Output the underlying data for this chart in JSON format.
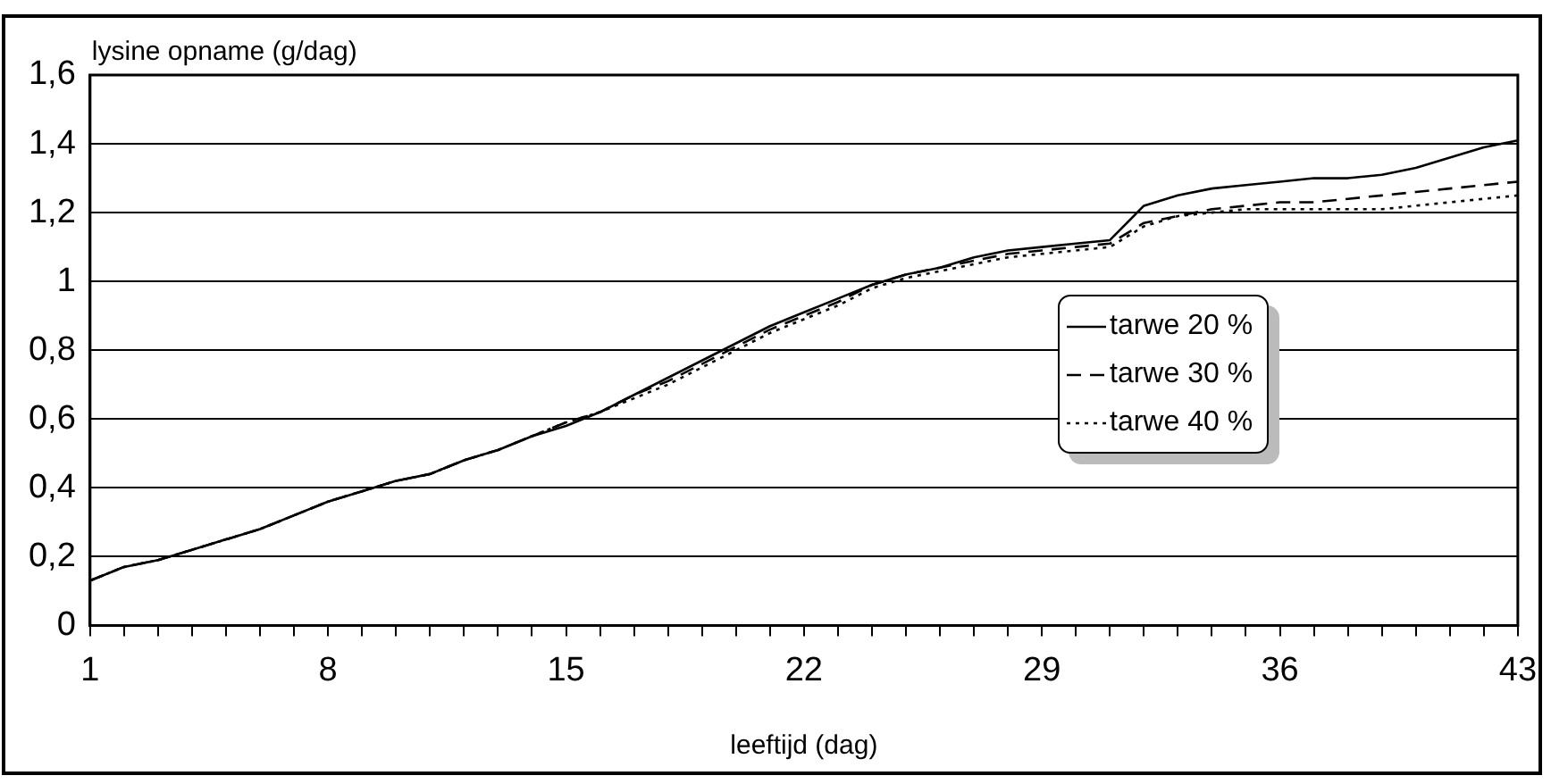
{
  "chart_data": {
    "type": "line",
    "ylabel": "lysine opname (g/dag)",
    "xlabel": "leeftijd (dag)",
    "x": [
      1,
      2,
      3,
      4,
      5,
      6,
      7,
      8,
      9,
      10,
      11,
      12,
      13,
      14,
      15,
      16,
      17,
      18,
      19,
      20,
      21,
      22,
      23,
      24,
      25,
      26,
      27,
      28,
      29,
      30,
      31,
      32,
      33,
      34,
      35,
      36,
      37,
      38,
      39,
      40,
      41,
      42,
      43
    ],
    "series": [
      {
        "name": "tarwe 20 %",
        "color": "#000000",
        "line_style": "solid",
        "values": [
          0.13,
          0.17,
          0.19,
          0.22,
          0.25,
          0.28,
          0.32,
          0.36,
          0.39,
          0.42,
          0.44,
          0.48,
          0.51,
          0.55,
          0.58,
          0.62,
          0.67,
          0.72,
          0.77,
          0.82,
          0.87,
          0.91,
          0.95,
          0.99,
          1.02,
          1.04,
          1.07,
          1.09,
          1.1,
          1.11,
          1.12,
          1.22,
          1.25,
          1.27,
          1.28,
          1.29,
          1.3,
          1.3,
          1.31,
          1.33,
          1.36,
          1.39,
          1.41
        ]
      },
      {
        "name": "tarwe 30 %",
        "color": "#000000",
        "line_style": "dashed",
        "values": [
          0.13,
          0.17,
          0.19,
          0.22,
          0.25,
          0.28,
          0.32,
          0.36,
          0.39,
          0.42,
          0.44,
          0.48,
          0.51,
          0.55,
          0.59,
          0.62,
          0.67,
          0.71,
          0.76,
          0.81,
          0.86,
          0.9,
          0.94,
          0.99,
          1.02,
          1.04,
          1.06,
          1.08,
          1.09,
          1.1,
          1.11,
          1.17,
          1.19,
          1.21,
          1.22,
          1.23,
          1.23,
          1.24,
          1.25,
          1.26,
          1.27,
          1.28,
          1.29
        ]
      },
      {
        "name": "tarwe 40 %",
        "color": "#000000",
        "line_style": "dotted",
        "values": [
          0.13,
          0.17,
          0.19,
          0.22,
          0.25,
          0.28,
          0.32,
          0.36,
          0.39,
          0.42,
          0.44,
          0.48,
          0.51,
          0.55,
          0.59,
          0.62,
          0.66,
          0.7,
          0.75,
          0.8,
          0.85,
          0.89,
          0.93,
          0.98,
          1.01,
          1.03,
          1.05,
          1.07,
          1.08,
          1.09,
          1.1,
          1.16,
          1.19,
          1.2,
          1.21,
          1.21,
          1.21,
          1.21,
          1.21,
          1.22,
          1.23,
          1.24,
          1.25
        ]
      }
    ],
    "xlim": [
      1,
      43
    ],
    "xticks": [
      1,
      {
        "value": 2,
        "label": null
      },
      {
        "value": 3,
        "label": null
      },
      {
        "value": 4,
        "label": null
      },
      {
        "value": 5,
        "label": null
      },
      {
        "value": 6,
        "label": null
      },
      {
        "value": 7,
        "label": null
      },
      8,
      {
        "value": 9,
        "label": null
      },
      {
        "value": 10,
        "label": null
      },
      {
        "value": 11,
        "label": null
      },
      {
        "value": 12,
        "label": null
      },
      {
        "value": 13,
        "label": null
      },
      {
        "value": 14,
        "label": null
      },
      15,
      {
        "value": 16,
        "label": null
      },
      {
        "value": 17,
        "label": null
      },
      {
        "value": 18,
        "label": null
      },
      {
        "value": 19,
        "label": null
      },
      {
        "value": 20,
        "label": null
      },
      {
        "value": 21,
        "label": null
      },
      22,
      {
        "value": 23,
        "label": null
      },
      {
        "value": 24,
        "label": null
      },
      {
        "value": 25,
        "label": null
      },
      {
        "value": 26,
        "label": null
      },
      {
        "value": 27,
        "label": null
      },
      {
        "value": 28,
        "label": null
      },
      29,
      {
        "value": 30,
        "label": null
      },
      {
        "value": 31,
        "label": null
      },
      {
        "value": 32,
        "label": null
      },
      {
        "value": 33,
        "label": null
      },
      {
        "value": 34,
        "label": null
      },
      {
        "value": 35,
        "label": null
      },
      36,
      {
        "value": 37,
        "label": null
      },
      {
        "value": 38,
        "label": null
      },
      {
        "value": 39,
        "label": null
      },
      {
        "value": 40,
        "label": null
      },
      {
        "value": 41,
        "label": null
      },
      {
        "value": 42,
        "label": null
      },
      43
    ],
    "ylim": [
      0,
      1.6
    ],
    "yticks": [
      {
        "value": 0,
        "label": "0"
      },
      {
        "value": 0.2,
        "label": "0,2"
      },
      {
        "value": 0.4,
        "label": "0,4"
      },
      {
        "value": 0.6,
        "label": "0,6"
      },
      {
        "value": 0.8,
        "label": "0,8"
      },
      {
        "value": 1,
        "label": "1"
      },
      {
        "value": 1.2,
        "label": "1,2"
      },
      {
        "value": 1.4,
        "label": "1,4"
      },
      {
        "value": 1.6,
        "label": "1,6"
      }
    ],
    "grid": "y",
    "legend": "right",
    "marker": "none"
  }
}
